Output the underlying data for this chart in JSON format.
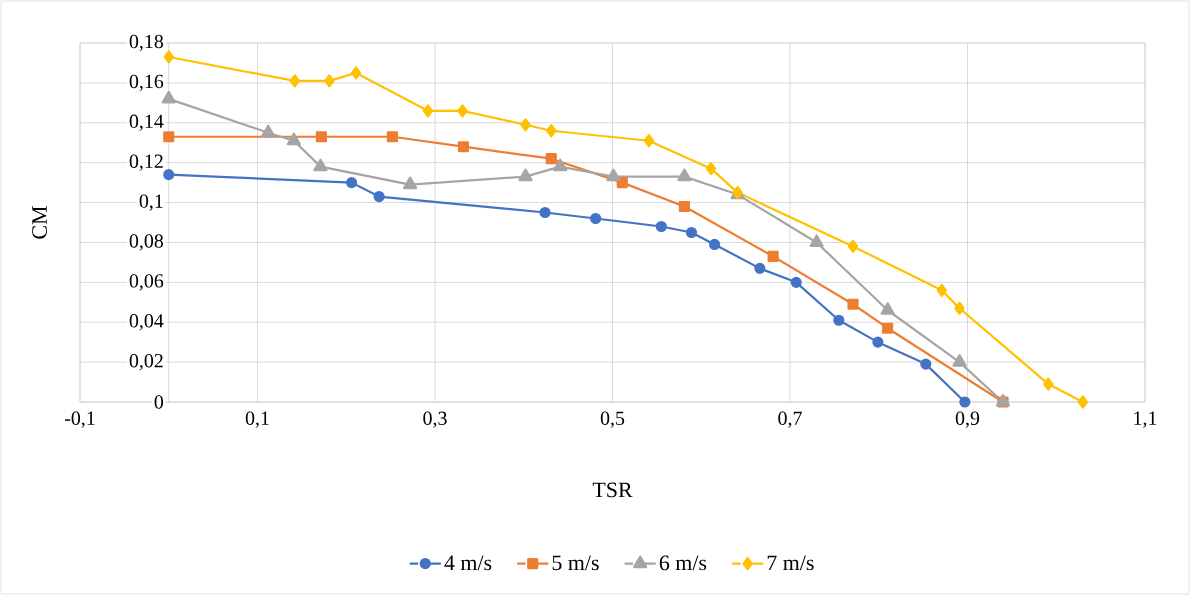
{
  "chart_data": {
    "type": "line",
    "xlabel": "TSR",
    "ylabel": "CM",
    "xlim": [
      -0.1,
      1.1
    ],
    "xticks": [
      {
        "value": -0.1,
        "label": "-0,1"
      },
      {
        "value": 0.1,
        "label": "0,1"
      },
      {
        "value": 0.3,
        "label": "0,3"
      },
      {
        "value": 0.5,
        "label": "0,5"
      },
      {
        "value": 0.7,
        "label": "0,7"
      },
      {
        "value": 0.9,
        "label": "0,9"
      },
      {
        "value": 1.1,
        "label": "1,1"
      }
    ],
    "ylim": [
      0,
      0.18
    ],
    "yticks": [
      0,
      {
        "value": 0.02,
        "label": "0,02"
      },
      {
        "value": 0.04,
        "label": "0,04"
      },
      {
        "value": 0.06,
        "label": "0,06"
      },
      {
        "value": 0.08,
        "label": "0,08"
      },
      {
        "value": 0.1,
        "label": "0,1"
      },
      {
        "value": 0.12,
        "label": "0,12"
      },
      {
        "value": 0.14,
        "label": "0,14"
      },
      {
        "value": 0.16,
        "label": "0,16"
      },
      {
        "value": 0.18,
        "label": "0,18"
      }
    ],
    "grid": true,
    "legend": "bottom",
    "series": [
      {
        "name": "4 m/s",
        "color": "#4472c4",
        "marker": "circle",
        "x": [
          0,
          0.206,
          0.237,
          0.424,
          0.481,
          0.555,
          0.589,
          0.615,
          0.666,
          0.707,
          0.755,
          0.799,
          0.853,
          0.897
        ],
        "values": [
          0.114,
          0.11,
          0.103,
          0.095,
          0.092,
          0.088,
          0.085,
          0.079,
          0.067,
          0.06,
          0.041,
          0.03,
          0.019,
          0
        ]
      },
      {
        "name": "5 m/s",
        "color": "#ed7d31",
        "marker": "square",
        "x": [
          0,
          0.172,
          0.252,
          0.332,
          0.431,
          0.511,
          0.581,
          0.681,
          0.771,
          0.81,
          0.94
        ],
        "values": [
          0.133,
          0.133,
          0.133,
          0.128,
          0.122,
          0.11,
          0.098,
          0.073,
          0.049,
          0.037,
          0
        ]
      },
      {
        "name": "6 m/s",
        "color": "#a5a5a5",
        "marker": "triangle",
        "x": [
          0,
          0.112,
          0.141,
          0.171,
          0.272,
          0.402,
          0.441,
          0.501,
          0.581,
          0.641,
          0.73,
          0.81,
          0.891,
          0.94
        ],
        "values": [
          0.152,
          0.135,
          0.131,
          0.118,
          0.109,
          0.113,
          0.118,
          0.113,
          0.113,
          0.104,
          0.08,
          0.046,
          0.02,
          0
        ]
      },
      {
        "name": "7 m/s",
        "color": "#ffc000",
        "marker": "diamond",
        "x": [
          0,
          0.142,
          0.181,
          0.211,
          0.292,
          0.331,
          0.402,
          0.431,
          0.541,
          0.611,
          0.641,
          0.771,
          0.871,
          0.891,
          0.991,
          1.03
        ],
        "values": [
          0.173,
          0.161,
          0.161,
          0.165,
          0.146,
          0.146,
          0.139,
          0.136,
          0.131,
          0.117,
          0.105,
          0.078,
          0.056,
          0.047,
          0.009,
          0
        ]
      }
    ]
  }
}
